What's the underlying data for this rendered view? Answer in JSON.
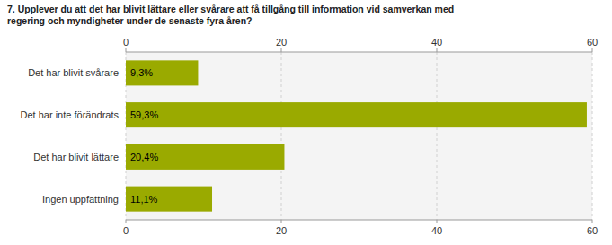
{
  "chart_data": {
    "type": "bar",
    "orientation": "horizontal",
    "title": "7. Upplever du att det har blivit lättare eller svårare att få tillgång till information vid samverkan med\nregering och myndigheter under de senaste fyra åren?",
    "categories": [
      "Det har blivit svårare",
      "Det har inte förändrats",
      "Det har blivit lättare",
      "Ingen uppfattning"
    ],
    "values": [
      9.3,
      59.3,
      20.4,
      11.1
    ],
    "value_labels": [
      "9,3%",
      "59,3%",
      "20,4%",
      "11,1%"
    ],
    "data_labels": true,
    "color": "#9aaa00",
    "xlim": [
      0,
      60
    ],
    "xticks": [
      0,
      20,
      40,
      60
    ],
    "grid": true
  }
}
